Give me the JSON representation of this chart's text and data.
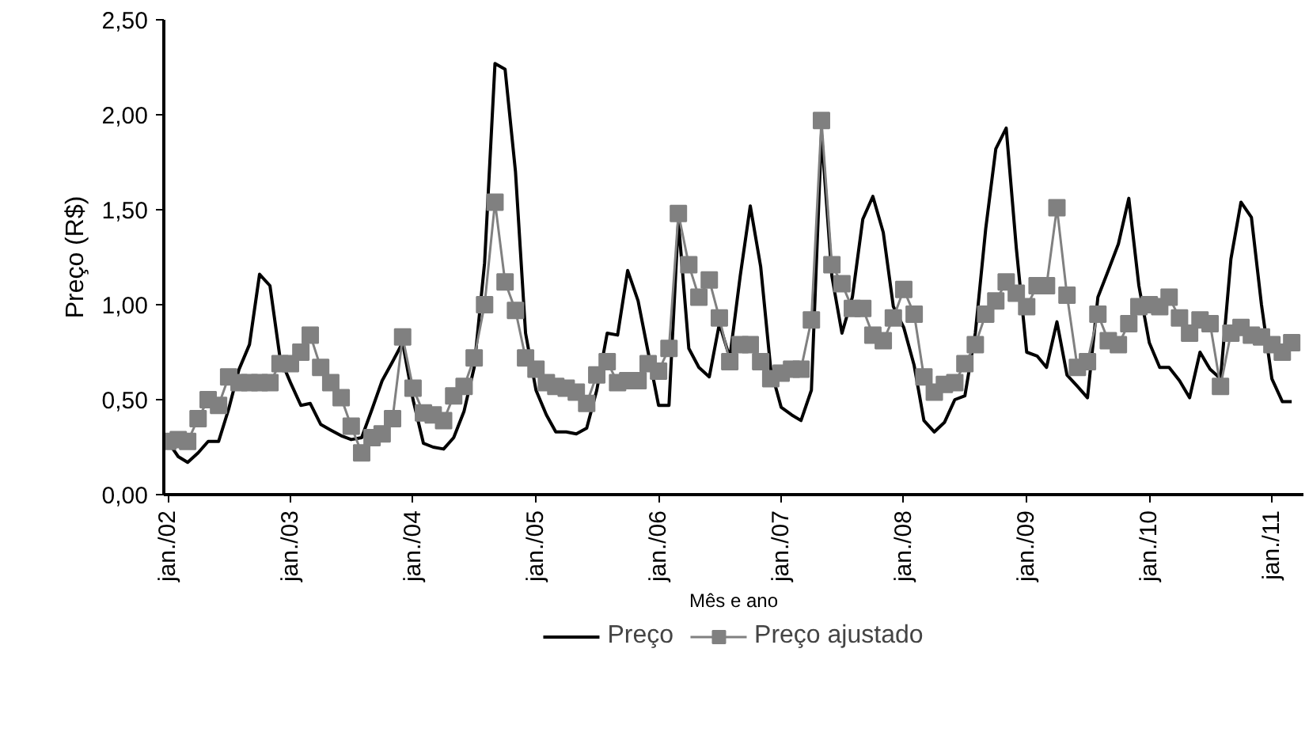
{
  "chart_data": {
    "type": "line",
    "xlabel": "Mês e ano",
    "ylabel": "Preço (R$)",
    "x": [
      "2002-01",
      "2002-02",
      "2002-03",
      "2002-04",
      "2002-05",
      "2002-06",
      "2002-07",
      "2002-08",
      "2002-09",
      "2002-10",
      "2002-11",
      "2002-12",
      "2003-01",
      "2003-02",
      "2003-03",
      "2003-04",
      "2003-05",
      "2003-06",
      "2003-07",
      "2003-08",
      "2003-09",
      "2003-10",
      "2003-11",
      "2003-12",
      "2004-01",
      "2004-02",
      "2004-03",
      "2004-04",
      "2004-05",
      "2004-06",
      "2004-07",
      "2004-08",
      "2004-09",
      "2004-10",
      "2004-11",
      "2004-12",
      "2005-01",
      "2005-02",
      "2005-03",
      "2005-04",
      "2005-05",
      "2005-06",
      "2005-07",
      "2005-08",
      "2005-09",
      "2005-10",
      "2005-11",
      "2005-12",
      "2006-01",
      "2006-02",
      "2006-03",
      "2006-04",
      "2006-05",
      "2006-06",
      "2006-07",
      "2006-08",
      "2006-09",
      "2006-10",
      "2006-11",
      "2006-12",
      "2007-01",
      "2007-02",
      "2007-03",
      "2007-04",
      "2007-05",
      "2007-06",
      "2007-07",
      "2007-08",
      "2007-09",
      "2007-10",
      "2007-11",
      "2007-12",
      "2008-01",
      "2008-02",
      "2008-03",
      "2008-04",
      "2008-05",
      "2008-06",
      "2008-07",
      "2008-08",
      "2008-09",
      "2008-10",
      "2008-11",
      "2008-12",
      "2009-01",
      "2009-02",
      "2009-03",
      "2009-04",
      "2009-05",
      "2009-06",
      "2009-07",
      "2009-08",
      "2009-09",
      "2009-10",
      "2009-11",
      "2009-12",
      "2010-01",
      "2010-02",
      "2010-03",
      "2010-04",
      "2010-05",
      "2010-06",
      "2010-07",
      "2010-08",
      "2010-09",
      "2010-10",
      "2010-11",
      "2010-12",
      "2011-01",
      "2011-02",
      "2011-03"
    ],
    "series": [
      {
        "name": "Preço",
        "color": "#000000",
        "marker": "none",
        "values": [
          0.28,
          0.2,
          0.17,
          0.22,
          0.28,
          0.28,
          0.45,
          0.66,
          0.79,
          1.16,
          1.1,
          0.72,
          0.59,
          0.47,
          0.48,
          0.37,
          0.34,
          0.31,
          0.29,
          0.3,
          0.45,
          0.6,
          0.7,
          0.8,
          0.5,
          0.27,
          0.25,
          0.24,
          0.3,
          0.44,
          0.67,
          1.22,
          2.27,
          2.24,
          1.7,
          0.85,
          0.55,
          0.42,
          0.33,
          0.33,
          0.32,
          0.35,
          0.55,
          0.85,
          0.84,
          1.18,
          1.02,
          0.75,
          0.47,
          0.47,
          1.44,
          0.77,
          0.67,
          0.62,
          0.9,
          0.72,
          1.15,
          1.52,
          1.2,
          0.66,
          0.46,
          0.42,
          0.39,
          0.55,
          1.9,
          1.15,
          0.85,
          1.04,
          1.45,
          1.57,
          1.38,
          0.99,
          0.88,
          0.68,
          0.39,
          0.33,
          0.38,
          0.5,
          0.52,
          0.85,
          1.4,
          1.82,
          1.93,
          1.3,
          0.75,
          0.73,
          0.67,
          0.91,
          0.63,
          0.57,
          0.51,
          1.04,
          1.18,
          1.32,
          1.56,
          1.1,
          0.8,
          0.67,
          0.67,
          0.6,
          0.51,
          0.75,
          0.66,
          0.61,
          1.24,
          1.54,
          1.46,
          1.0,
          0.61,
          0.49,
          0.49
        ]
      },
      {
        "name": "Preço ajustado",
        "color": "#808080",
        "marker": "square",
        "values": [
          0.28,
          0.29,
          0.28,
          0.4,
          0.5,
          0.47,
          0.62,
          0.59,
          0.59,
          0.59,
          0.59,
          0.69,
          0.69,
          0.75,
          0.84,
          0.67,
          0.59,
          0.51,
          0.36,
          0.22,
          0.3,
          0.32,
          0.4,
          0.83,
          0.56,
          0.43,
          0.42,
          0.39,
          0.52,
          0.57,
          0.72,
          1.0,
          1.54,
          1.12,
          0.97,
          0.72,
          0.66,
          0.59,
          0.57,
          0.56,
          0.54,
          0.48,
          0.63,
          0.7,
          0.59,
          0.6,
          0.6,
          0.69,
          0.65,
          0.77,
          1.48,
          1.21,
          1.04,
          1.13,
          0.93,
          0.7,
          0.79,
          0.79,
          0.7,
          0.61,
          0.64,
          0.66,
          0.66,
          0.92,
          1.97,
          1.21,
          1.11,
          0.98,
          0.98,
          0.84,
          0.81,
          0.93,
          1.08,
          0.95,
          0.62,
          0.54,
          0.58,
          0.59,
          0.69,
          0.79,
          0.95,
          1.02,
          1.12,
          1.06,
          0.99,
          1.1,
          1.1,
          1.51,
          1.05,
          0.67,
          0.7,
          0.95,
          0.81,
          0.79,
          0.9,
          0.99,
          1.0,
          0.99,
          1.04,
          0.93,
          0.85,
          0.92,
          0.9,
          0.57,
          0.85,
          0.88,
          0.84,
          0.83,
          0.79,
          0.75,
          0.8
        ]
      }
    ],
    "xlim": [
      "2001-12-20",
      "2011-04-05"
    ],
    "xticks": [
      {
        "value": "2002-01",
        "label": "jan./02"
      },
      {
        "value": "2003-01",
        "label": "jan./03"
      },
      {
        "value": "2004-01",
        "label": "jan./04"
      },
      {
        "value": "2005-01",
        "label": "jan./05"
      },
      {
        "value": "2006-01",
        "label": "jan./06"
      },
      {
        "value": "2007-01",
        "label": "jan./07"
      },
      {
        "value": "2008-01",
        "label": "jan./08"
      },
      {
        "value": "2009-01",
        "label": "jan./09"
      },
      {
        "value": "2010-01",
        "label": "jan./10"
      },
      {
        "value": "2011-01",
        "label": "jan./11"
      }
    ],
    "ylim": [
      0,
      2.5
    ],
    "yticks": [
      {
        "value": 0,
        "label": "0,00"
      },
      {
        "value": 0.5,
        "label": "0,50"
      },
      {
        "value": 1,
        "label": "1,00"
      },
      {
        "value": 1.5,
        "label": "1,50"
      },
      {
        "value": 2,
        "label": "2,00"
      },
      {
        "value": 2.5,
        "label": "2,50"
      }
    ],
    "grid": false,
    "legend": "bottom",
    "line_style": "solid"
  }
}
